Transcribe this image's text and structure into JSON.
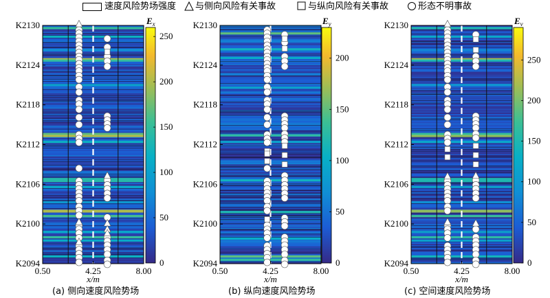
{
  "legend": {
    "intensity": "速度风险势场强度",
    "lateral": "与侧向风险有关事故",
    "longitudinal": "与纵向风险有关事故",
    "unknown": "形态不明事故"
  },
  "chart_data": [
    {
      "type": "heatmap",
      "caption": "(a) 侧向速度风险势场",
      "xlabel": "x/m",
      "x_ticks": [
        "0.50",
        "4.25",
        "8.00"
      ],
      "y_ticks": [
        "K2130",
        "K2124",
        "K2118",
        "K2112",
        "K2106",
        "K2100",
        "K2094"
      ],
      "y_range": [
        2094,
        2130
      ],
      "x_range": [
        0.5,
        8.0
      ],
      "lane_lines": [
        2.4,
        6.1
      ],
      "dashed_line": 4.25,
      "colorbar": {
        "label": "Ex",
        "ticks": [
          0,
          50,
          100,
          150,
          200,
          250
        ],
        "range": [
          0,
          260
        ]
      },
      "hot_bands": [
        {
          "y": 2129.6,
          "v": 150
        },
        {
          "y": 2128.3,
          "v": 120
        },
        {
          "y": 2126.3,
          "v": 80
        },
        {
          "y": 2124.9,
          "v": 200
        },
        {
          "y": 2124.7,
          "v": 150
        },
        {
          "y": 2121.0,
          "v": 100
        },
        {
          "y": 2113.6,
          "v": 170
        },
        {
          "y": 2113.3,
          "v": 200
        },
        {
          "y": 2112.4,
          "v": 120
        },
        {
          "y": 2106.8,
          "v": 140
        },
        {
          "y": 2106.5,
          "v": 140
        },
        {
          "y": 2105.6,
          "v": 110
        },
        {
          "y": 2101.2,
          "v": 160
        },
        {
          "y": 2102.0,
          "v": 200
        },
        {
          "y": 2101.9,
          "v": 200
        },
        {
          "y": 2098.8,
          "v": 110
        },
        {
          "y": 2098.0,
          "v": 150
        },
        {
          "y": 2097.5,
          "v": 110
        },
        {
          "y": 2095.1,
          "v": 120
        },
        {
          "y": 2103.3,
          "v": 90
        }
      ],
      "accidents": {
        "col1_x": 3.2,
        "col2_x": 5.3,
        "col1_lateral": [
          2130.2,
          2100.3,
          2097.3
        ],
        "col1_circles": [
          2129.3,
          2128.8,
          2128.2,
          2127.6,
          2127.0,
          2126.4,
          2125.9,
          2125.3,
          2124.8,
          2124.2,
          2123.6,
          2123.1,
          2122.4,
          2121.8,
          2120.7,
          2119.9,
          2118.7,
          2118.1,
          2117.3,
          2116.1,
          2115.0,
          2113.5,
          2112.9,
          2112.3,
          2108.4,
          2106.5,
          2105.9,
          2105.3,
          2104.7,
          2104.1,
          2103.5,
          2102.6,
          2102.0,
          2101.3,
          2099.8,
          2099.2,
          2098.6,
          2097.9,
          2096.7,
          2096.1,
          2095.5,
          2094.9,
          2094.2
        ],
        "col2_lateral": [
          2107.3,
          2100.1,
          2099.2,
          2098.6
        ],
        "col2_longitudinal": [
          2126.0
        ],
        "col2_circles": [
          2128.0,
          2126.7,
          2125.3,
          2124.6,
          2123.8,
          2116.3,
          2115.7,
          2115.1,
          2114.5,
          2106.6,
          2105.9,
          2105.3,
          2104.6,
          2103.9,
          2101.0,
          2098.0,
          2097.4,
          2096.8,
          2096.1,
          2095.4,
          2094.5,
          2093.9
        ]
      }
    },
    {
      "type": "heatmap",
      "caption": "(b) 纵向速度风险势场",
      "xlabel": "x/m",
      "x_ticks": [
        "0.50",
        "4.25",
        "8.00"
      ],
      "y_ticks": [
        "K2130",
        "K2124",
        "K2118",
        "K2112",
        "K2106",
        "K2100",
        "K2094"
      ],
      "y_range": [
        2094,
        2130
      ],
      "x_range": [
        0.5,
        8.0
      ],
      "lane_lines": [],
      "dashed_line": 4.25,
      "colorbar": {
        "label": "Ey",
        "ticks": [
          0,
          50,
          100,
          150,
          200
        ],
        "range": [
          0,
          230
        ]
      },
      "hot_bands": [
        {
          "y": 2128.8,
          "v": 150
        },
        {
          "y": 2126.4,
          "v": 110
        },
        {
          "y": 2125.1,
          "v": 100
        },
        {
          "y": 2120.6,
          "v": 90
        },
        {
          "y": 2113.4,
          "v": 130
        },
        {
          "y": 2112.4,
          "v": 90
        },
        {
          "y": 2106.6,
          "v": 110
        },
        {
          "y": 2101.8,
          "v": 120
        },
        {
          "y": 2097.8,
          "v": 100
        },
        {
          "y": 2095.1,
          "v": 150
        },
        {
          "y": 2094.6,
          "v": 130
        }
      ],
      "accidents": {
        "col1_x": 4.0,
        "col2_x": 5.3,
        "col1_lateral": [],
        "col1_longitudinal": [
          2111.0,
          2110.6,
          2109.5,
          2100.7
        ],
        "col1_circles": [
          2129.3,
          2128.8,
          2128.2,
          2127.6,
          2127.0,
          2126.4,
          2125.9,
          2125.3,
          2124.8,
          2124.2,
          2123.6,
          2123.1,
          2122.4,
          2121.8,
          2120.7,
          2119.9,
          2118.7,
          2118.1,
          2117.3,
          2116.1,
          2115.0,
          2113.5,
          2112.9,
          2112.3,
          2108.4,
          2106.5,
          2105.9,
          2105.3,
          2104.7,
          2104.1,
          2103.5,
          2102.6,
          2102.0,
          2099.8,
          2099.2,
          2098.6,
          2097.9,
          2096.7,
          2096.1,
          2095.5,
          2094.9,
          2094.2
        ],
        "col2_longitudinal": [
          2128.0,
          2126.5,
          2111.8,
          2110.4,
          2109.0
        ],
        "col2_circles": [
          2128.6,
          2127.4,
          2125.3,
          2124.6,
          2123.8,
          2116.3,
          2115.7,
          2115.1,
          2114.5,
          2113.6,
          2113.0,
          2112.4,
          2107.3,
          2106.6,
          2105.9,
          2105.3,
          2104.6,
          2103.9,
          2100.9,
          2100.3,
          2099.7,
          2098.0,
          2097.4,
          2096.8,
          2096.1,
          2095.4,
          2094.5,
          2093.9
        ]
      }
    },
    {
      "type": "heatmap",
      "caption": "(c) 空间速度风险势场",
      "xlabel": "x/m",
      "x_ticks": [
        "0.50",
        "4.25",
        "8.00"
      ],
      "y_ticks": [
        "K2130",
        "K2124",
        "K2118",
        "K2112",
        "K2106",
        "K2100",
        "K2094"
      ],
      "y_range": [
        2094,
        2130
      ],
      "x_range": [
        0.5,
        8.0
      ],
      "lane_lines": [
        2.4,
        6.1
      ],
      "dashed_line": 4.25,
      "colorbar": {
        "label": "Ev",
        "ticks": [
          0,
          50,
          100,
          150,
          200,
          250
        ],
        "range": [
          0,
          290
        ]
      },
      "hot_bands": [
        {
          "y": 2129.6,
          "v": 150
        },
        {
          "y": 2128.3,
          "v": 120
        },
        {
          "y": 2126.3,
          "v": 80
        },
        {
          "y": 2124.9,
          "v": 220
        },
        {
          "y": 2124.7,
          "v": 150
        },
        {
          "y": 2121.0,
          "v": 100
        },
        {
          "y": 2113.6,
          "v": 170
        },
        {
          "y": 2113.3,
          "v": 210
        },
        {
          "y": 2112.4,
          "v": 120
        },
        {
          "y": 2106.8,
          "v": 150
        },
        {
          "y": 2106.5,
          "v": 150
        },
        {
          "y": 2105.6,
          "v": 110
        },
        {
          "y": 2101.2,
          "v": 170
        },
        {
          "y": 2102.0,
          "v": 210
        },
        {
          "y": 2101.9,
          "v": 210
        },
        {
          "y": 2098.8,
          "v": 110
        },
        {
          "y": 2098.0,
          "v": 160
        },
        {
          "y": 2097.5,
          "v": 110
        },
        {
          "y": 2095.1,
          "v": 140
        },
        {
          "y": 2103.3,
          "v": 90
        }
      ],
      "accidents": {
        "col1_x": 3.2,
        "col2_x": 5.3,
        "col1_lateral": [
          2130.2,
          2107.2,
          2100.3
        ],
        "col1_longitudinal": [
          2111.3,
          2110.1
        ],
        "col1_circles": [
          2129.3,
          2128.8,
          2128.2,
          2127.6,
          2127.0,
          2126.4,
          2125.9,
          2125.3,
          2124.8,
          2124.2,
          2123.6,
          2123.1,
          2122.4,
          2121.8,
          2120.7,
          2119.9,
          2118.7,
          2118.1,
          2117.3,
          2116.1,
          2115.0,
          2113.5,
          2112.9,
          2112.3,
          2106.5,
          2105.9,
          2105.3,
          2104.7,
          2104.1,
          2103.5,
          2102.6,
          2102.0,
          2099.8,
          2099.2,
          2098.6,
          2097.9,
          2096.7,
          2096.1,
          2095.5,
          2094.9,
          2094.2
        ],
        "col2_lateral": [
          2107.3,
          2100.1
        ],
        "col2_longitudinal": [
          2127.9,
          2126.3,
          2111.8,
          2110.4,
          2109.0
        ],
        "col2_circles": [
          2128.6,
          2125.3,
          2124.6,
          2123.8,
          2116.3,
          2115.7,
          2115.1,
          2114.5,
          2113.6,
          2113.0,
          2106.6,
          2105.9,
          2105.3,
          2104.6,
          2103.9,
          2099.2,
          2098.0,
          2097.4,
          2096.8,
          2096.1,
          2095.4,
          2094.5,
          2093.9
        ]
      }
    }
  ]
}
